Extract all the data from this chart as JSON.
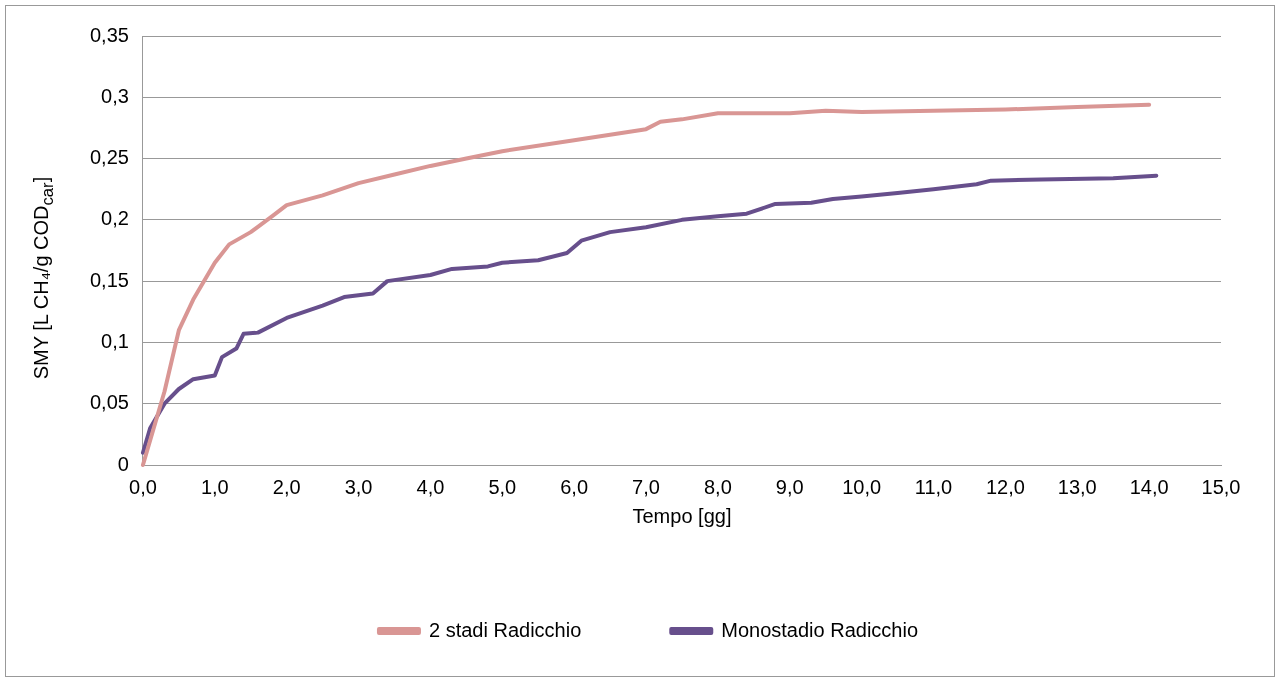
{
  "chart_data": {
    "type": "line",
    "xlabel": "Tempo [gg]",
    "ylabel": "SMY [L CH₄/g COD$_{car}$]",
    "xlim": [
      0,
      15
    ],
    "xticks": [
      {
        "value": 0,
        "label": "0,0"
      },
      {
        "value": 1,
        "label": "1,0"
      },
      {
        "value": 2,
        "label": "2,0"
      },
      {
        "value": 3,
        "label": "3,0"
      },
      {
        "value": 4,
        "label": "4,0"
      },
      {
        "value": 5,
        "label": "5,0"
      },
      {
        "value": 6,
        "label": "6,0"
      },
      {
        "value": 7,
        "label": "7,0"
      },
      {
        "value": 8,
        "label": "8,0"
      },
      {
        "value": 9,
        "label": "9,0"
      },
      {
        "value": 10,
        "label": "10,0"
      },
      {
        "value": 11,
        "label": "11,0"
      },
      {
        "value": 12,
        "label": "12,0"
      },
      {
        "value": 13,
        "label": "13,0"
      },
      {
        "value": 14,
        "label": "14,0"
      },
      {
        "value": 15,
        "label": "15,0"
      }
    ],
    "ylim": [
      0,
      0.35
    ],
    "yticks": [
      0,
      {
        "value": 0.05,
        "label": "0,05"
      },
      {
        "value": 0.1,
        "label": "0,1"
      },
      {
        "value": 0.15,
        "label": "0,15"
      },
      {
        "value": 0.2,
        "label": "0,2"
      },
      {
        "value": 0.25,
        "label": "0,25"
      },
      {
        "value": 0.3,
        "label": "0,3"
      },
      {
        "value": 0.35,
        "label": "0,35"
      }
    ],
    "grid": "y",
    "legend": "bottom",
    "marker": "none",
    "line_style": "solid",
    "series": [
      {
        "name": "2 stadi Radicchio",
        "color": "#d99694",
        "x": [
          0,
          0.1,
          0.3,
          0.5,
          0.7,
          1.0,
          1.2,
          1.5,
          1.8,
          2.0,
          2.5,
          3.0,
          3.5,
          4.0,
          4.5,
          5.0,
          6.0,
          7.0,
          7.2,
          7.5,
          8.0,
          8.5,
          9.0,
          9.5,
          10,
          11,
          12,
          13,
          14
        ],
        "values": [
          0,
          0.02,
          0.06,
          0.11,
          0.135,
          0.165,
          0.18,
          0.19,
          0.203,
          0.212,
          0.22,
          0.23,
          0.237,
          0.244,
          0.25,
          0.256,
          0.265,
          0.274,
          0.28,
          0.282,
          0.287,
          0.287,
          0.287,
          0.289,
          0.288,
          0.289,
          0.29,
          0.292,
          0.294
        ]
      },
      {
        "name": "Monostadio Radicchio",
        "color": "#674f8c",
        "x": [
          0,
          0.1,
          0.3,
          0.5,
          0.7,
          1.0,
          1.1,
          1.3,
          1.4,
          1.6,
          2.0,
          2.5,
          2.8,
          3.2,
          3.4,
          4.0,
          4.3,
          4.8,
          5.0,
          5.5,
          5.9,
          6.1,
          6.5,
          7.0,
          7.5,
          8.0,
          8.4,
          8.8,
          9.3,
          9.6,
          10.0,
          10.5,
          11.0,
          11.6,
          11.8,
          12.5,
          13.5,
          14.1
        ],
        "values": [
          0.01,
          0.03,
          0.05,
          0.062,
          0.07,
          0.073,
          0.088,
          0.095,
          0.107,
          0.108,
          0.12,
          0.13,
          0.137,
          0.14,
          0.15,
          0.155,
          0.16,
          0.162,
          0.165,
          0.167,
          0.173,
          0.183,
          0.19,
          0.194,
          0.2,
          0.203,
          0.205,
          0.213,
          0.214,
          0.217,
          0.219,
          0.222,
          0.225,
          0.229,
          0.232,
          0.233,
          0.234,
          0.236
        ]
      }
    ]
  }
}
